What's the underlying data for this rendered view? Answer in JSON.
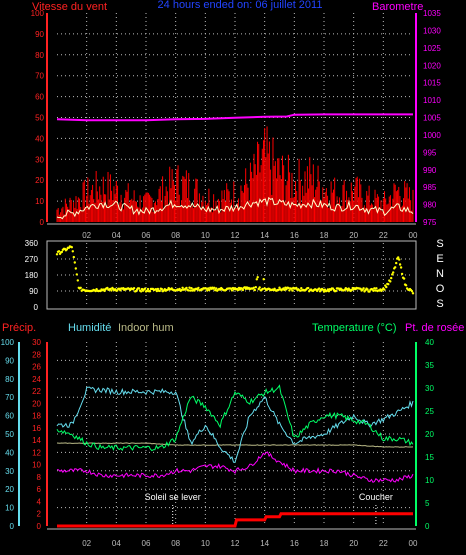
{
  "top_panel": {
    "title": "24 hours ended on: 06 juillet 2011",
    "left_label": "Vitesse du vent",
    "right_label": "Barometre",
    "left_ticks": [
      "0",
      "10",
      "20",
      "30",
      "40",
      "50",
      "60",
      "70",
      "80",
      "90",
      "100"
    ],
    "right_ticks": [
      "975",
      "980",
      "985",
      "990",
      "995",
      "1000",
      "1005",
      "1010",
      "1015",
      "1020",
      "1025",
      "1030",
      "1035"
    ],
    "x_ticks": [
      "02",
      "04",
      "06",
      "08",
      "10",
      "12",
      "14",
      "16",
      "18",
      "20",
      "22",
      "00"
    ]
  },
  "mid_panel": {
    "left_ticks": [
      "0",
      "90",
      "180",
      "270",
      "360"
    ],
    "right_letters": [
      "S",
      "E",
      "N",
      "O",
      "S"
    ],
    "x_ticks": [
      "02",
      "04",
      "06",
      "08",
      "10",
      "12",
      "14",
      "16",
      "18",
      "20",
      "22",
      "00"
    ]
  },
  "bottom_panel": {
    "labels": {
      "precip": "Précip.",
      "humidity": "Humidité",
      "indoor_hum": "Indoor hum",
      "temperature": "Temperature (°C)",
      "dew_point": "Pt. de rosée"
    },
    "humidity_ticks": [
      "0",
      "10",
      "20",
      "30",
      "40",
      "50",
      "60",
      "70",
      "80",
      "90",
      "100"
    ],
    "precip_ticks": [
      "0",
      "2",
      "4",
      "6",
      "8",
      "10",
      "12",
      "14",
      "16",
      "18",
      "20",
      "22",
      "24",
      "26",
      "28",
      "30"
    ],
    "temp_ticks": [
      "0",
      "5",
      "10",
      "15",
      "20",
      "25",
      "30",
      "35",
      "40"
    ],
    "x_ticks": [
      "02",
      "04",
      "06",
      "08",
      "10",
      "12",
      "14",
      "16",
      "18",
      "20",
      "22",
      "00"
    ],
    "sunrise_label": "Soleil se lever",
    "sunset_label": "Coucher"
  },
  "colors": {
    "wind": "#ff0000",
    "gust": "#ff0000",
    "wind_avg": "#ffffcc",
    "barometer": "#ff00ff",
    "direction": "#ffff00",
    "humidity": "#66ddee",
    "indoor_hum": "#bbbb88",
    "temperature": "#00ff66",
    "dew_point": "#ff00ff",
    "precip": "#ff0000",
    "title": "#2244ff",
    "grid": "#bbbbbb"
  },
  "chart_data": [
    {
      "type": "line",
      "panel": "wind_barometer",
      "x_range_hours": [
        0,
        24
      ],
      "ylim_left": [
        0,
        100
      ],
      "ylim_right": [
        975,
        1035
      ],
      "series": [
        {
          "name": "Vitesse du vent",
          "axis": "left",
          "x": [
            0,
            1,
            2,
            3,
            4,
            5,
            6,
            7,
            8,
            9,
            10,
            11,
            12,
            13,
            14,
            15,
            16,
            17,
            18,
            19,
            20,
            21,
            22,
            23,
            24
          ],
          "values": [
            3,
            4,
            7,
            9,
            8,
            6,
            5,
            7,
            9,
            8,
            6,
            6,
            7,
            9,
            10,
            9,
            8,
            9,
            8,
            7,
            8,
            6,
            5,
            7,
            5
          ]
        },
        {
          "name": "Rafales",
          "axis": "left",
          "x": [
            0,
            1,
            2,
            3,
            4,
            5,
            6,
            7,
            8,
            9,
            10,
            11,
            12,
            13,
            14,
            15,
            16,
            17,
            18,
            19,
            20,
            21,
            22,
            23,
            24
          ],
          "values": [
            8,
            12,
            18,
            22,
            20,
            15,
            12,
            18,
            25,
            22,
            16,
            15,
            18,
            25,
            40,
            30,
            25,
            28,
            22,
            18,
            20,
            15,
            12,
            20,
            14
          ]
        },
        {
          "name": "Barometre",
          "axis": "right",
          "x": [
            0,
            2,
            4,
            6,
            8,
            10,
            12,
            14,
            15.5,
            16,
            18,
            20,
            22,
            24
          ],
          "values": [
            1004.5,
            1004.2,
            1004.2,
            1004.2,
            1004.5,
            1004.6,
            1004.9,
            1005.2,
            1005.3,
            1005.8,
            1005.9,
            1005.9,
            1005.9,
            1005.9
          ]
        }
      ]
    },
    {
      "type": "scatter",
      "panel": "wind_direction",
      "x_range_hours": [
        0,
        24
      ],
      "ylim": [
        0,
        360
      ],
      "series": [
        {
          "name": "Direction",
          "x": [
            0,
            0.5,
            1,
            1.5,
            2,
            4,
            6,
            8,
            10,
            12,
            13,
            14,
            15,
            16,
            18,
            20,
            21,
            22,
            22.5,
            23,
            23.5,
            24
          ],
          "values": [
            300,
            320,
            340,
            100,
            95,
            100,
            95,
            100,
            100,
            100,
            105,
            100,
            100,
            100,
            95,
            100,
            95,
            100,
            150,
            280,
            120,
            80
          ]
        }
      ]
    },
    {
      "type": "line",
      "panel": "humidity_temperature",
      "x_range_hours": [
        0,
        24
      ],
      "ylim_humidity": [
        0,
        100
      ],
      "ylim_precip": [
        0,
        30
      ],
      "ylim_temp": [
        0,
        40
      ],
      "series": [
        {
          "name": "Humidité",
          "axis": "humidity",
          "x": [
            0,
            1,
            2,
            3,
            4,
            5,
            6,
            7,
            8,
            9,
            10,
            11,
            12,
            13,
            14,
            15,
            16,
            17,
            18,
            19,
            20,
            21,
            22,
            23,
            24
          ],
          "values": [
            55,
            55,
            74,
            74,
            73,
            73,
            73,
            73,
            73,
            45,
            55,
            43,
            35,
            60,
            70,
            55,
            45,
            48,
            50,
            55,
            60,
            55,
            58,
            62,
            67
          ]
        },
        {
          "name": "Indoor hum",
          "axis": "humidity",
          "x": [
            0,
            2,
            4,
            6,
            8,
            10,
            12,
            14,
            16,
            18,
            20,
            22,
            24
          ],
          "values": [
            45,
            45,
            45,
            45,
            44,
            44,
            44,
            44,
            44,
            44,
            44,
            43,
            43
          ]
        },
        {
          "name": "Temperature (°C)",
          "axis": "temp",
          "x": [
            0,
            1,
            2,
            3,
            4,
            5,
            6,
            7,
            8,
            9,
            10,
            11,
            12,
            13,
            14,
            15,
            16,
            17,
            18,
            19,
            20,
            21,
            22,
            23,
            24
          ],
          "values": [
            21,
            20,
            18,
            17,
            17,
            17,
            17,
            17,
            19,
            28,
            26,
            22,
            29,
            27,
            29,
            30,
            19,
            22,
            24,
            24,
            23,
            22,
            19,
            19,
            18
          ]
        },
        {
          "name": "Pt. de rosée",
          "axis": "temp",
          "x": [
            0,
            1,
            2,
            3,
            4,
            5,
            6,
            7,
            8,
            9,
            10,
            11,
            12,
            13,
            14,
            15,
            16,
            17,
            18,
            19,
            20,
            21,
            22,
            23,
            24
          ],
          "values": [
            12,
            12,
            12,
            11,
            11,
            11,
            11,
            11,
            12,
            12,
            13,
            13,
            12,
            13,
            16,
            14,
            12,
            12,
            12,
            12,
            11,
            10,
            10,
            10,
            11
          ]
        },
        {
          "name": "Précip.",
          "axis": "precip",
          "x": [
            0,
            12,
            12.1,
            14,
            14.1,
            15,
            15.1,
            24
          ],
          "values": [
            0,
            0,
            1,
            1,
            1.5,
            1.5,
            2,
            2
          ]
        }
      ],
      "annotations": [
        {
          "label": "Soleil se lever",
          "x_hour": 7.8
        },
        {
          "label": "Coucher",
          "x_hour": 21.5
        }
      ]
    }
  ]
}
